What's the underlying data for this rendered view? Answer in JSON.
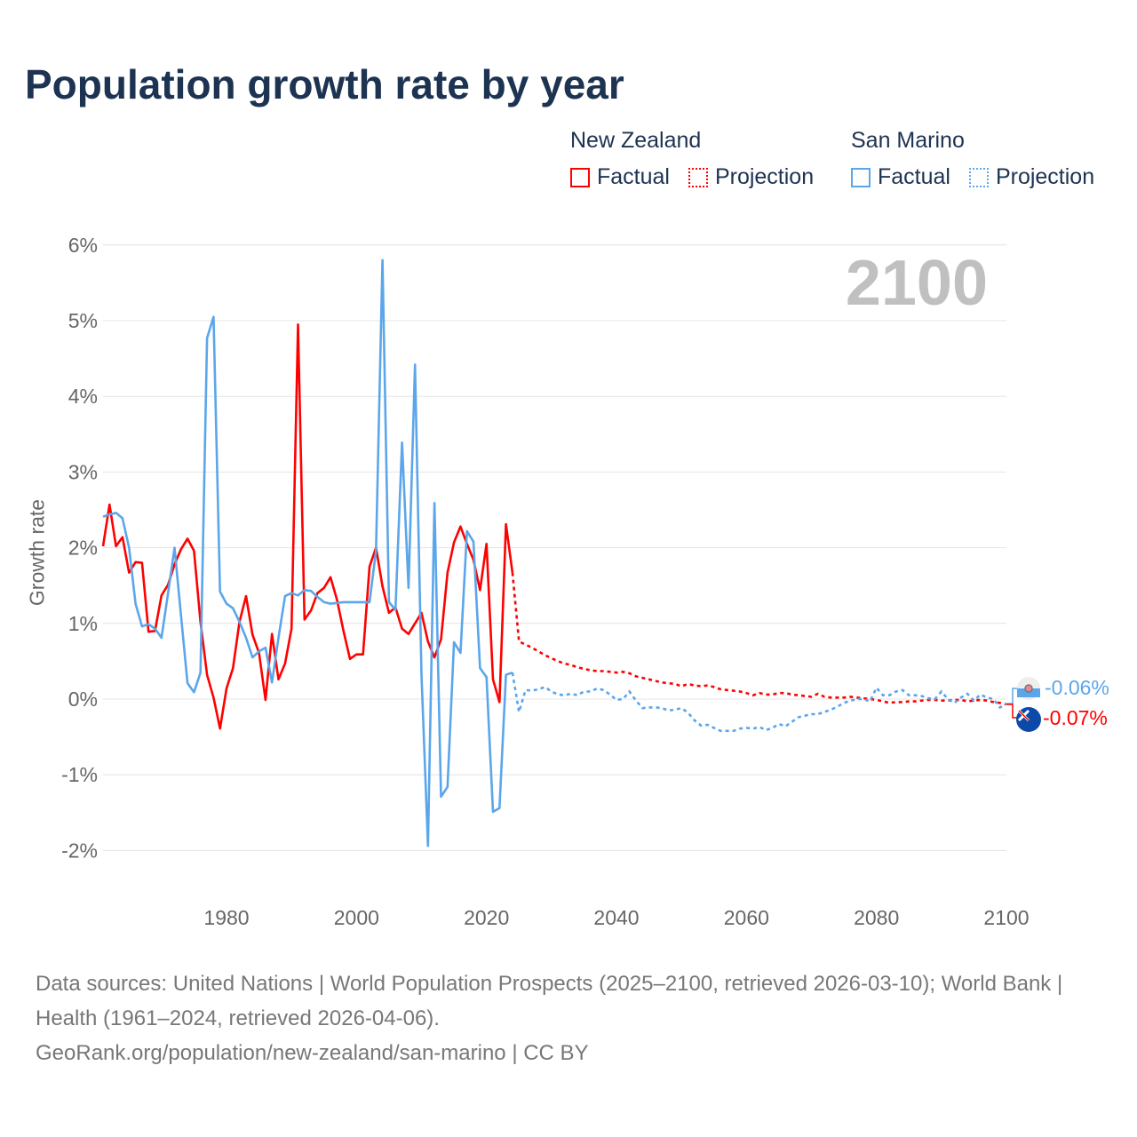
{
  "title": "Population growth rate by year",
  "legend": {
    "groups": [
      {
        "name": "New Zealand",
        "factual": "Factual",
        "projection": "Projection",
        "color": "#ff0000"
      },
      {
        "name": "San Marino",
        "factual": "Factual",
        "projection": "Projection",
        "color": "#5ba6ea"
      }
    ]
  },
  "source": {
    "line1": "Data sources: United Nations | World Population Prospects (2025–2100, retrieved 2026-03-10); World Bank | Health (1961–2024, retrieved 2026-04-06).",
    "line2": "GeoRank.org/population/new-zealand/san-marino | CC BY"
  },
  "chart_data": {
    "type": "line",
    "title": "Population growth rate by year",
    "xlabel": "",
    "ylabel": "Growth rate",
    "year_watermark": "2100",
    "xlim": [
      1961,
      2100
    ],
    "ylim": [
      -2,
      6
    ],
    "x_ticks": [
      1980,
      2000,
      2020,
      2040,
      2060,
      2080,
      2100
    ],
    "y_ticks": [
      {
        "value": 6,
        "label": "6%"
      },
      {
        "value": 5,
        "label": "5%"
      },
      {
        "value": 4,
        "label": "4%"
      },
      {
        "value": 3,
        "label": "3%"
      },
      {
        "value": 2,
        "label": "2%"
      },
      {
        "value": 1,
        "label": "1%"
      },
      {
        "value": 0,
        "label": "0%"
      },
      {
        "value": -1,
        "label": "-1%"
      },
      {
        "value": -2,
        "label": "-2%"
      }
    ],
    "grid": true,
    "legend_position": "top-right",
    "series": [
      {
        "name": "New Zealand",
        "color": "#ff0000",
        "end_label": "-0.07%",
        "factual_start": 1961,
        "factual": [
          2.02,
          2.57,
          2.02,
          2.14,
          1.67,
          1.81,
          1.8,
          0.89,
          0.9,
          1.37,
          1.51,
          1.78,
          1.98,
          2.12,
          1.96,
          1.02,
          0.32,
          0.02,
          -0.39,
          0.14,
          0.41,
          1.02,
          1.36,
          0.85,
          0.61,
          -0.01,
          0.86,
          0.26,
          0.47,
          0.93,
          4.95,
          1.05,
          1.17,
          1.4,
          1.47,
          1.61,
          1.31,
          0.9,
          0.53,
          0.59,
          0.59,
          1.75,
          2.0,
          1.49,
          1.14,
          1.21,
          0.93,
          0.86,
          1.0,
          1.14,
          0.76,
          0.55,
          0.79,
          1.67,
          2.07,
          2.28,
          2.05,
          1.84,
          1.44,
          2.05,
          0.26,
          -0.04,
          2.31,
          1.67
        ],
        "projection_start": 2025,
        "projection": [
          0.76,
          0.72,
          0.68,
          0.63,
          0.58,
          0.54,
          0.5,
          0.47,
          0.45,
          0.42,
          0.4,
          0.38,
          0.37,
          0.37,
          0.36,
          0.35,
          0.36,
          0.34,
          0.3,
          0.28,
          0.26,
          0.24,
          0.22,
          0.21,
          0.2,
          0.17,
          0.2,
          0.18,
          0.17,
          0.18,
          0.16,
          0.13,
          0.12,
          0.11,
          0.1,
          0.08,
          0.05,
          0.08,
          0.06,
          0.06,
          0.08,
          0.08,
          0.06,
          0.05,
          0.04,
          0.03,
          0.07,
          0.03,
          0.02,
          0.02,
          0.02,
          0.03,
          0.02,
          0.01,
          0.0,
          -0.01,
          -0.03,
          -0.05,
          -0.04,
          -0.04,
          -0.03,
          -0.03,
          -0.02,
          -0.01,
          -0.01,
          -0.02,
          -0.02,
          -0.01,
          -0.01,
          -0.03,
          -0.02,
          -0.01,
          -0.02,
          -0.04,
          -0.05,
          -0.07
        ]
      },
      {
        "name": "San Marino",
        "color": "#5ba6ea",
        "end_label": "-0.06%",
        "factual_start": 1961,
        "factual": [
          2.41,
          2.44,
          2.46,
          2.39,
          2.0,
          1.26,
          0.96,
          0.99,
          0.93,
          0.81,
          1.4,
          2.0,
          1.1,
          0.21,
          0.09,
          0.35,
          4.77,
          5.05,
          1.42,
          1.26,
          1.2,
          1.02,
          0.81,
          0.55,
          0.63,
          0.68,
          0.22,
          0.81,
          1.36,
          1.4,
          1.37,
          1.44,
          1.43,
          1.35,
          1.28,
          1.26,
          1.27,
          1.28,
          1.28,
          1.28,
          1.28,
          1.28,
          1.96,
          5.8,
          1.28,
          1.18,
          3.39,
          1.47,
          4.42,
          0.32,
          -1.94,
          2.59,
          -1.29,
          -1.16,
          0.75,
          0.61,
          2.22,
          2.08,
          0.41,
          0.29,
          -1.49,
          -1.44,
          0.32,
          0.35
        ],
        "projection_start": 2025,
        "projection": [
          -0.17,
          0.12,
          0.11,
          0.13,
          0.16,
          0.1,
          0.06,
          0.05,
          0.07,
          0.05,
          0.1,
          0.1,
          0.14,
          0.12,
          0.06,
          -0.01,
          0.0,
          0.1,
          -0.02,
          -0.12,
          -0.11,
          -0.11,
          -0.12,
          -0.15,
          -0.14,
          -0.12,
          -0.18,
          -0.28,
          -0.35,
          -0.34,
          -0.38,
          -0.42,
          -0.42,
          -0.42,
          -0.39,
          -0.38,
          -0.39,
          -0.37,
          -0.41,
          -0.38,
          -0.33,
          -0.36,
          -0.3,
          -0.24,
          -0.22,
          -0.2,
          -0.2,
          -0.17,
          -0.14,
          -0.1,
          -0.05,
          -0.02,
          0.0,
          0.0,
          -0.03,
          0.15,
          0.05,
          0.05,
          0.1,
          0.12,
          0.05,
          0.05,
          0.04,
          0.01,
          0.0,
          0.1,
          0.0,
          -0.05,
          0.02,
          0.07,
          -0.02,
          0.06,
          0.02,
          0.0,
          -0.11,
          -0.06
        ]
      }
    ]
  }
}
